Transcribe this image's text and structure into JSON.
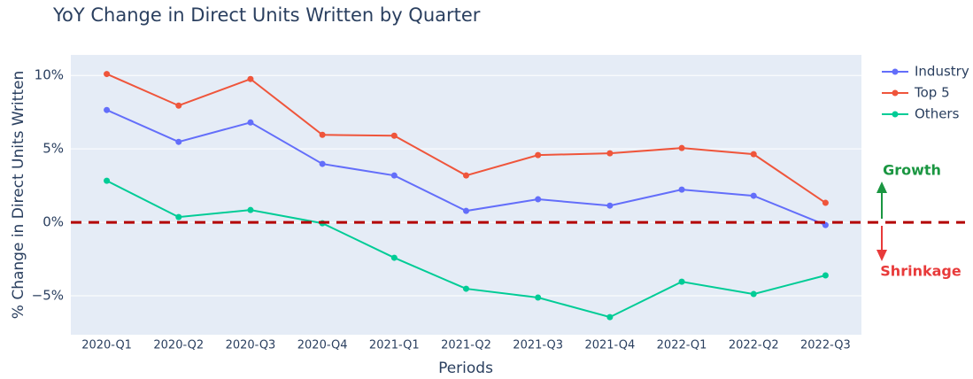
{
  "chart_data": {
    "type": "line",
    "title": "YoY Change in Direct Units Written by Quarter",
    "x_label": "Periods",
    "y_label": "% Change in Direct Units Written",
    "categories": [
      "2020-Q1",
      "2020-Q2",
      "2020-Q3",
      "2020-Q4",
      "2021-Q1",
      "2021-Q2",
      "2021-Q3",
      "2021-Q4",
      "2022-Q1",
      "2022-Q2",
      "2022-Q3"
    ],
    "series": [
      {
        "name": "Industry",
        "color": "#636efa",
        "values": [
          7.65,
          5.48,
          6.8,
          3.98,
          3.19,
          0.78,
          1.57,
          1.14,
          2.23,
          1.81,
          -0.18
        ]
      },
      {
        "name": "Top 5",
        "color": "#ef553b",
        "values": [
          10.1,
          7.95,
          9.76,
          5.96,
          5.9,
          3.19,
          4.58,
          4.7,
          5.06,
          4.64,
          1.33
        ]
      },
      {
        "name": "Others",
        "color": "#00cc96",
        "values": [
          2.83,
          0.36,
          0.84,
          -0.06,
          -2.41,
          -4.52,
          -5.12,
          -6.45,
          -4.04,
          -4.88,
          -3.61
        ]
      }
    ],
    "ylim": [
      -7.65,
      11.4
    ],
    "yticks": [
      {
        "value": -5,
        "label": "−5%"
      },
      {
        "value": 0,
        "label": "0%"
      },
      {
        "value": 5,
        "label": "5%"
      },
      {
        "value": 10,
        "label": "10%"
      }
    ],
    "grid": true,
    "legend": "right",
    "reference_line": {
      "value": 0,
      "color": "#b30000"
    },
    "annotations": [
      {
        "text": "Growth",
        "color": "#1a9641"
      },
      {
        "text": "Shrinkage",
        "color": "#e83a3a"
      }
    ]
  }
}
